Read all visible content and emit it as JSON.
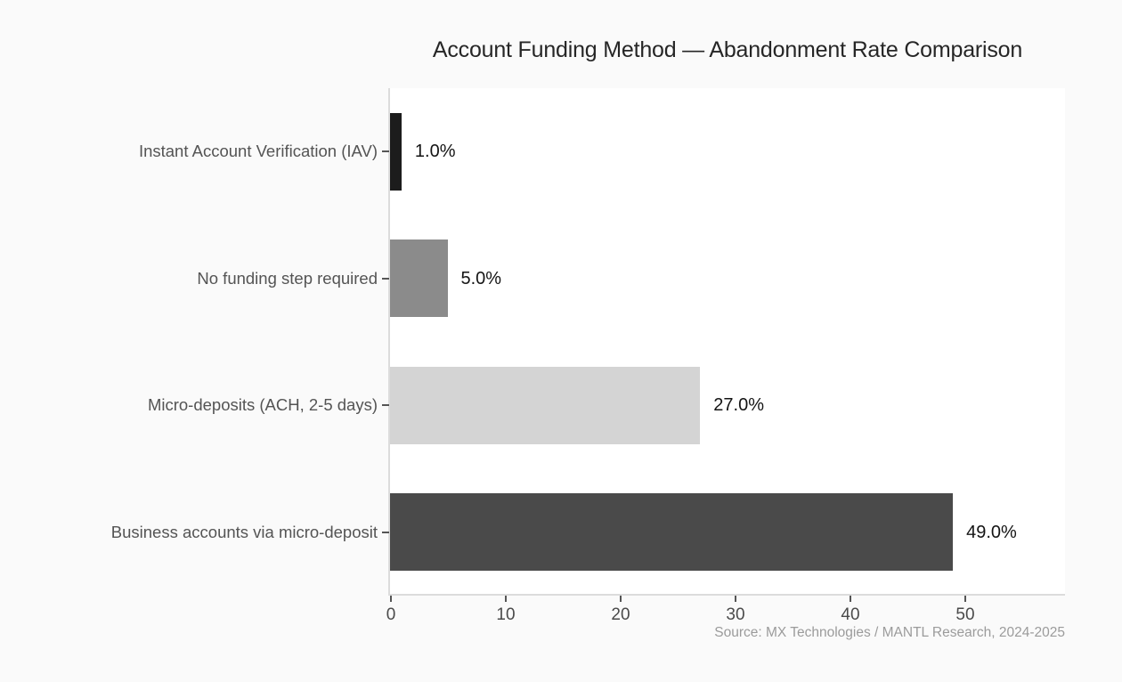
{
  "chart_data": {
    "type": "bar",
    "orientation": "horizontal",
    "title": "Account Funding Method — Abandonment Rate Comparison",
    "categories": [
      "Instant Account Verification (IAV)",
      "No funding step required",
      "Micro-deposits (ACH, 2-5 days)",
      "Business accounts via micro-deposit"
    ],
    "values": [
      1.0,
      5.0,
      27.0,
      49.0
    ],
    "value_labels": [
      "1.0%",
      "5.0%",
      "27.0%",
      "49.0%"
    ],
    "bar_colors": [
      "#1c1c1c",
      "#8b8b8b",
      "#d4d4d4",
      "#4a4a4a"
    ],
    "x_ticks": [
      0,
      10,
      20,
      30,
      40,
      50
    ],
    "xlim": [
      0,
      58.8
    ],
    "xlabel": "",
    "ylabel": "",
    "grid": false,
    "legend": false,
    "source": "Source: MX Technologies / MANTL Research, 2024-2025"
  },
  "colors": {
    "figure_background": "#fafafa",
    "plot_background": "#ffffff",
    "axis_line": "#dcdcdc",
    "tick_mark": "#555555",
    "title_text": "#262626",
    "category_text": "#545454",
    "value_text": "#141414",
    "source_text": "#9b9b9b"
  }
}
